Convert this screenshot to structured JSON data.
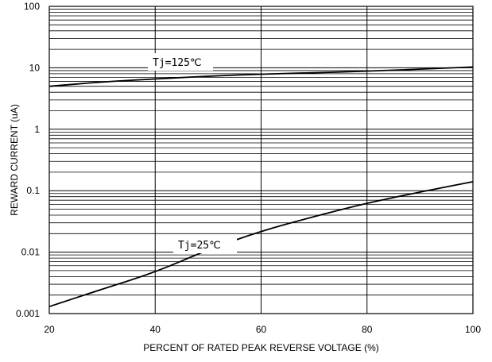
{
  "chart_data": {
    "type": "line",
    "title": "",
    "xlabel": "PERCENT OF RATED PEAK REVERSE VOLTAGE (%)",
    "ylabel": "REWARD CURRENT (uA)",
    "xlim": [
      20,
      100
    ],
    "ylim": [
      0.001,
      100
    ],
    "y_scale": "log",
    "grid": true,
    "x_ticks": [
      20,
      40,
      60,
      80,
      100
    ],
    "y_ticks": [
      0.001,
      0.01,
      0.1,
      1,
      10,
      100
    ],
    "x_tick_labels": [
      "20",
      "40",
      "60",
      "80",
      "100"
    ],
    "y_tick_labels": [
      "0.001",
      "0.01",
      "0.1",
      "1",
      "10",
      "100"
    ],
    "series": [
      {
        "name": "Tj=125℃",
        "x": [
          20,
          30,
          40,
          50,
          60,
          70,
          80,
          90,
          100
        ],
        "values": [
          5.0,
          5.9,
          6.6,
          7.3,
          7.9,
          8.3,
          8.8,
          9.5,
          10.3
        ]
      },
      {
        "name": "Tj=25℃",
        "x": [
          20,
          30,
          40,
          50,
          60,
          70,
          80,
          90,
          100
        ],
        "values": [
          0.0013,
          0.0025,
          0.0047,
          0.011,
          0.022,
          0.038,
          0.063,
          0.095,
          0.14
        ]
      }
    ],
    "colors": {
      "line": "#000000",
      "grid": "#000000",
      "background": "#ffffff"
    }
  }
}
